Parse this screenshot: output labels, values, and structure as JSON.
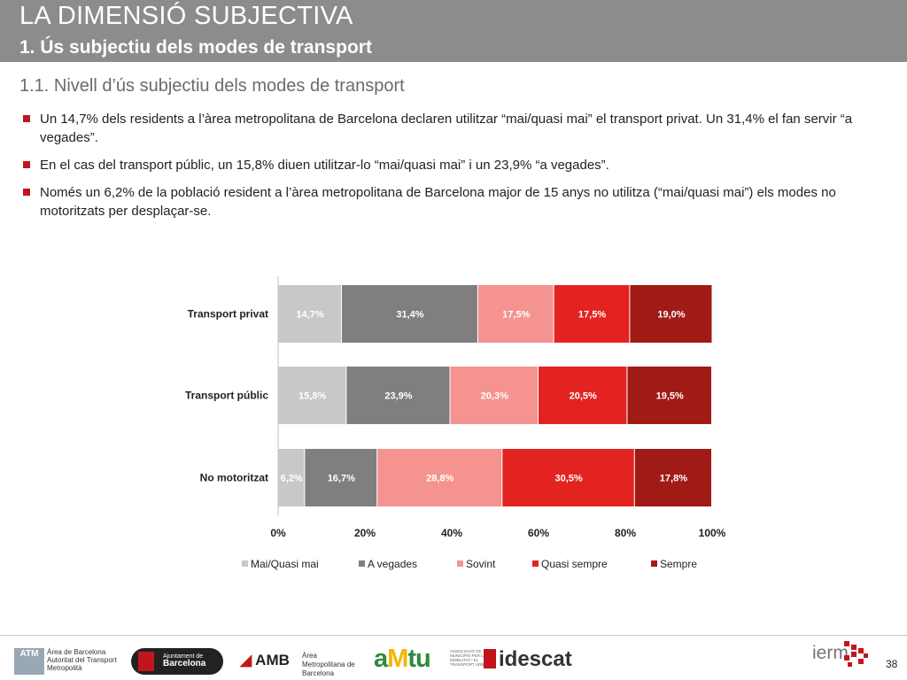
{
  "header": {
    "title": "LA DIMENSIÓ SUBJECTIVA",
    "subtitle": "1. Ús subjectiu dels modes de transport"
  },
  "section_title": "1.1. Nivell d’ús subjectiu dels modes de transport",
  "bullets": [
    "Un 14,7% dels residents a l’àrea metropolitana de Barcelona declaren utilitzar “mai/quasi mai” el transport privat. Un 31,4% el fan servir “a vegades”.",
    "En el cas del transport públic, un 15,8% diuen utilitzar-lo “mai/quasi mai” i un 23,9% “a vegades”.",
    "Només un 6,2% de la població resident a l’àrea metropolitana de Barcelona major de 15 anys no utilitza (“mai/quasi mai”) els modes no motoritzats per desplaçar-se."
  ],
  "chart_data": {
    "type": "bar",
    "orientation": "horizontal",
    "stacked": true,
    "categories": [
      "Transport privat",
      "Transport públic",
      "No motoritzat"
    ],
    "series": [
      {
        "name": "Mai/Quasi mai",
        "values": [
          14.7,
          15.8,
          6.2
        ],
        "labels": [
          "14,7%",
          "15,8%",
          "6,2%"
        ],
        "color": "#c8c8c8"
      },
      {
        "name": "A vegades",
        "values": [
          31.4,
          23.9,
          16.7
        ],
        "labels": [
          "31,4%",
          "23,9%",
          "16,7%"
        ],
        "color": "#7f7f7f"
      },
      {
        "name": "Sovint",
        "values": [
          17.5,
          20.3,
          28.8
        ],
        "labels": [
          "17,5%",
          "20,3%",
          "28,8%"
        ],
        "color": "#f4938f"
      },
      {
        "name": "Quasi sempre",
        "values": [
          17.5,
          20.5,
          30.5
        ],
        "labels": [
          "17,5%",
          "20,5%",
          "30,5%"
        ],
        "color": "#e3231f"
      },
      {
        "name": "Sempre",
        "values": [
          19.0,
          19.5,
          17.8
        ],
        "labels": [
          "19,0%",
          "19,5%",
          "17,8%"
        ],
        "color": "#a01a16"
      }
    ],
    "xlim": [
      0,
      100
    ],
    "xticks": [
      "0%",
      "20%",
      "40%",
      "60%",
      "80%",
      "100%"
    ],
    "legend_position": "bottom",
    "grid": false
  },
  "footer": {
    "atm_box": "ATM",
    "atm_text": "Àrea de Barcelona Autoritat del Transport Metropolità",
    "ajuntament_small": "Ajuntament de",
    "ajuntament_name": "Barcelona",
    "amb": "AMB",
    "amb_sub": "Àrea Metropolitana de Barcelona",
    "amtu_a": "a",
    "amtu_m": "M",
    "amtu_tu": "tu",
    "amtu_sub": "ASSOCIACIÓ DE MUNICIPIS PER LA MOBILITAT I EL TRANSPORT URBÀ",
    "idescat": "idescat",
    "ierm": "ierm",
    "page_number": "38"
  },
  "colors": {
    "header_bg": "#8c8c8c",
    "bullet": "#c0161b"
  }
}
